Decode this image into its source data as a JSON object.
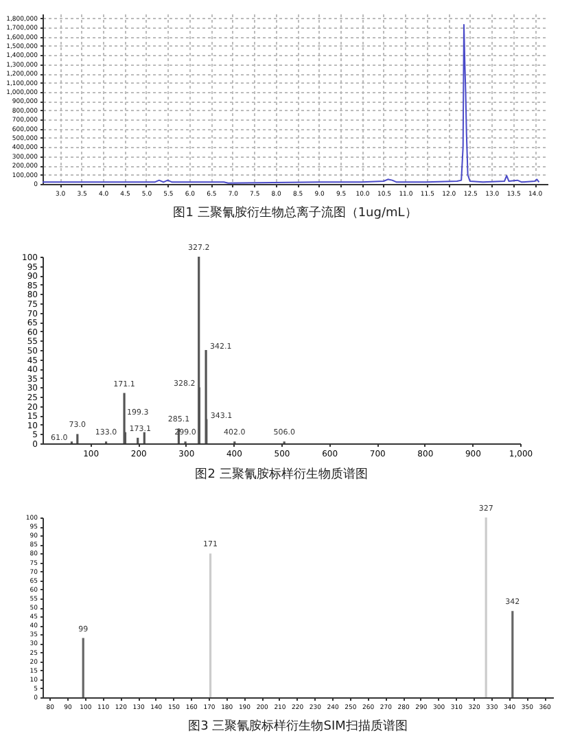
{
  "chart_data": [
    {
      "type": "line",
      "title": "图1 三聚氰胺衍生物总离子流图（1ug/mL）",
      "color": "#4a4ac8",
      "grid": true,
      "x": [
        2.6,
        5.2,
        5.3,
        5.4,
        5.5,
        5.6,
        6.8,
        6.9,
        9.0,
        10.0,
        10.5,
        10.6,
        10.7,
        10.8,
        11.5,
        12.2,
        12.3,
        12.34,
        12.36,
        12.38,
        12.4,
        12.42,
        12.45,
        12.5,
        12.8,
        13.3,
        13.35,
        13.4,
        13.6,
        13.7,
        14.0,
        14.05,
        14.1
      ],
      "values": [
        20000,
        20000,
        40000,
        20000,
        40000,
        20000,
        20000,
        10000,
        20000,
        20000,
        30000,
        50000,
        40000,
        20000,
        20000,
        30000,
        40000,
        400000,
        1730000,
        1330000,
        1000000,
        550000,
        100000,
        30000,
        20000,
        30000,
        90000,
        30000,
        40000,
        20000,
        30000,
        50000,
        20000
      ],
      "xlim": [
        2.6,
        14.3
      ],
      "xticks": [
        {
          "value": 3,
          "label": "3.0"
        },
        3.5,
        {
          "value": 4,
          "label": "4.0"
        },
        4.5,
        {
          "value": 5,
          "label": "5.0"
        },
        5.5,
        {
          "value": 6,
          "label": "6.0"
        },
        6.5,
        {
          "value": 7,
          "label": "7.0"
        },
        7.5,
        {
          "value": 8,
          "label": "8.0"
        },
        8.5,
        {
          "value": 9,
          "label": "9.0"
        },
        9.5,
        {
          "value": 10,
          "label": "10.0"
        },
        10.5,
        {
          "value": 11,
          "label": "11.0"
        },
        11.5,
        {
          "value": 12,
          "label": "12.0"
        },
        12.5,
        {
          "value": 13,
          "label": "13.0"
        },
        13.5,
        {
          "value": 14,
          "label": "14.0"
        }
      ],
      "ylim": [
        0,
        1850000
      ],
      "yticks": [
        0,
        {
          "value": 100000,
          "label": "100,000"
        },
        {
          "value": 200000,
          "label": "200,000"
        },
        {
          "value": 300000,
          "label": "300,000"
        },
        {
          "value": 400000,
          "label": "400,000"
        },
        {
          "value": 500000,
          "label": "500,000"
        },
        {
          "value": 600000,
          "label": "600,000"
        },
        {
          "value": 700000,
          "label": "700,000"
        },
        {
          "value": 800000,
          "label": "800,000"
        },
        {
          "value": 900000,
          "label": "900,000"
        },
        {
          "value": 1000000,
          "label": "1,000,000"
        },
        {
          "value": 1100000,
          "label": "1,100,000"
        },
        {
          "value": 1200000,
          "label": "1,200,000"
        },
        {
          "value": 1300000,
          "label": "1,300,000"
        },
        {
          "value": 1400000,
          "label": "1,400,000"
        },
        {
          "value": 1500000,
          "label": "1,500,000"
        },
        {
          "value": 1600000,
          "label": "1,600,000"
        },
        {
          "value": 1700000,
          "label": "1,700,000"
        },
        {
          "value": 1800000,
          "label": "1,800,000"
        }
      ]
    },
    {
      "type": "bar",
      "title": "图2 三聚氰胺标样衍生物质谱图",
      "color": "#555555",
      "x": [
        61.0,
        73.0,
        133.0,
        171.1,
        173.1,
        199.3,
        213.1,
        285.1,
        299.0,
        327.2,
        328.2,
        342.1,
        343.1,
        402.0,
        506.0
      ],
      "values": [
        1,
        5,
        1,
        27,
        6,
        3,
        6,
        8,
        1,
        100,
        30,
        50,
        13,
        1,
        1
      ],
      "xlim": [
        0,
        1000
      ],
      "xticks": [
        100,
        200,
        300,
        400,
        500,
        600,
        700,
        800,
        900,
        {
          "value": 1000,
          "label": "1,000"
        }
      ],
      "ylim": [
        0,
        100
      ],
      "yticks": [
        0,
        5,
        10,
        15,
        20,
        25,
        30,
        35,
        40,
        45,
        50,
        55,
        60,
        65,
        70,
        75,
        80,
        85,
        90,
        95,
        100
      ],
      "annotations": [
        {
          "text": "61.0",
          "x": 61.0,
          "y": 1
        },
        {
          "text": "73.0",
          "x": 73.0,
          "y": 5
        },
        {
          "text": "133.0",
          "x": 133.0,
          "y": 1
        },
        {
          "text": "171.1",
          "x": 171.1,
          "y": 27
        },
        {
          "text": "173.1",
          "x": 173.1,
          "y": 6
        },
        {
          "text": "199.3",
          "x": 199.3,
          "y": 3
        },
        {
          "text": "285.1",
          "x": 285.1,
          "y": 8
        },
        {
          "text": "299.0",
          "x": 299.0,
          "y": 1
        },
        {
          "text": "327.2",
          "x": 327.2,
          "y": 100
        },
        {
          "text": "328.2",
          "x": 328.2,
          "y": 30
        },
        {
          "text": "342.1",
          "x": 342.1,
          "y": 50
        },
        {
          "text": "343.1",
          "x": 343.1,
          "y": 13
        },
        {
          "text": "402.0",
          "x": 402.0,
          "y": 1
        },
        {
          "text": "506.0",
          "x": 506.0,
          "y": 1
        }
      ]
    },
    {
      "type": "bar",
      "title": "图3 三聚氰胺标样衍生物SIM扫描质谱图",
      "colors": [
        "#666666",
        "#cccccc",
        "#cccccc",
        "#666666"
      ],
      "x": [
        99,
        171,
        327,
        342
      ],
      "values": [
        33,
        80,
        100,
        48
      ],
      "xlim": [
        76,
        365
      ],
      "xticks": [
        80,
        90,
        100,
        110,
        120,
        130,
        140,
        150,
        160,
        170,
        180,
        190,
        200,
        210,
        220,
        230,
        240,
        250,
        260,
        270,
        280,
        290,
        300,
        310,
        320,
        330,
        340,
        350,
        360
      ],
      "ylim": [
        0,
        100
      ],
      "yticks": [
        0,
        5,
        10,
        15,
        20,
        25,
        30,
        35,
        40,
        45,
        50,
        55,
        60,
        65,
        70,
        75,
        80,
        85,
        90,
        95,
        100
      ],
      "annotations": [
        {
          "text": "99",
          "x": 99,
          "y": 33
        },
        {
          "text": "171",
          "x": 171,
          "y": 80
        },
        {
          "text": "327",
          "x": 327,
          "y": 100
        },
        {
          "text": "342",
          "x": 342,
          "y": 48
        }
      ]
    }
  ]
}
